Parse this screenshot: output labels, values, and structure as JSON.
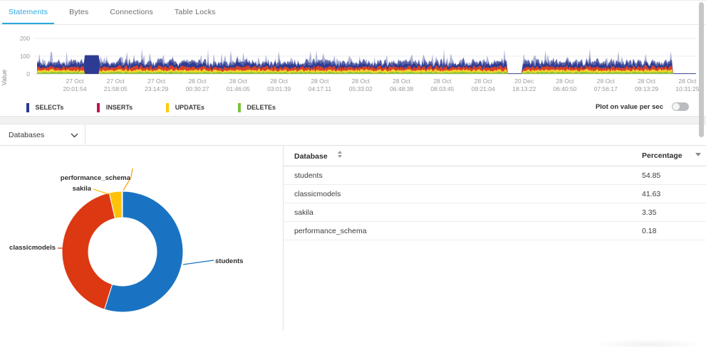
{
  "tabs": [
    {
      "label": "Statements",
      "active": true
    },
    {
      "label": "Bytes",
      "active": false
    },
    {
      "label": "Connections",
      "active": false
    },
    {
      "label": "Table Locks",
      "active": false
    }
  ],
  "toggle": {
    "label": "Plot on value per sec",
    "on": false
  },
  "dropdown": {
    "label": "Databases"
  },
  "table": {
    "columns": [
      "Database",
      "Percentage"
    ],
    "rows": [
      {
        "database": "students",
        "percentage": "54.85"
      },
      {
        "database": "classicmodels",
        "percentage": "41.63"
      },
      {
        "database": "sakila",
        "percentage": "3.35"
      },
      {
        "database": "performance_schema",
        "percentage": "0.18"
      }
    ]
  },
  "chart_data": [
    {
      "type": "area",
      "stacked": true,
      "title": "",
      "xlabel": "",
      "ylabel": "Value",
      "ylim": [
        0,
        220
      ],
      "yticks": [
        0,
        100,
        200
      ],
      "grid": true,
      "legend_position": "bottom",
      "xticks": [
        [
          "27 Oct",
          "20:01:54"
        ],
        [
          "27 Oct",
          "21:58:05"
        ],
        [
          "27 Oct",
          "23:14:29"
        ],
        [
          "28 Oct",
          "00:30:27"
        ],
        [
          "28 Oct",
          "01:46:05"
        ],
        [
          "28 Oct",
          "03:01:39"
        ],
        [
          "28 Oct",
          "04:17:11"
        ],
        [
          "28 Oct",
          "05:33:02"
        ],
        [
          "28 Oct",
          "06:48:38"
        ],
        [
          "28 Oct",
          "08:03:45"
        ],
        [
          "28 Oct",
          "09:21:04"
        ],
        [
          "20 Dec",
          "18:13:22"
        ],
        [
          "28 Oct",
          "06:40:50"
        ],
        [
          "28 Oct",
          "07:56:17"
        ],
        [
          "28 Oct",
          "09:13:29"
        ],
        [
          "28 Oct",
          "10:31:25"
        ]
      ],
      "series": [
        {
          "name": "SELECTs",
          "color": "#2B3990",
          "fill": "#2B3990",
          "avg_top": 75,
          "peak": 175
        },
        {
          "name": "INSERTs",
          "color": "#C8114E",
          "fill": "#D8432B",
          "avg_band": 18,
          "peak": 30
        },
        {
          "name": "UPDATEs",
          "color": "#FFCB05",
          "fill": "#F6D32B",
          "avg_band": 11,
          "peak": 18
        },
        {
          "name": "DELETEs",
          "color": "#7AC143",
          "fill": "#8DC63F",
          "avg_band": 9,
          "peak": 14
        }
      ],
      "features": {
        "high_region": [
          0,
          0.075
        ],
        "solid_block": [
          0.075,
          0.099
        ],
        "solid_value": 105,
        "gap": [
          0.714,
          0.737
        ],
        "tail": [
          0.965,
          1.0
        ],
        "baseline_value": 3
      }
    },
    {
      "type": "pie",
      "donut": true,
      "labels": [
        "students",
        "classicmodels",
        "sakila",
        "performance_schema"
      ],
      "values": [
        54.85,
        41.63,
        3.35,
        0.18
      ],
      "colors": [
        "#1A73C2",
        "#DC3912",
        "#FFC20A",
        "#FF9900"
      ]
    }
  ]
}
